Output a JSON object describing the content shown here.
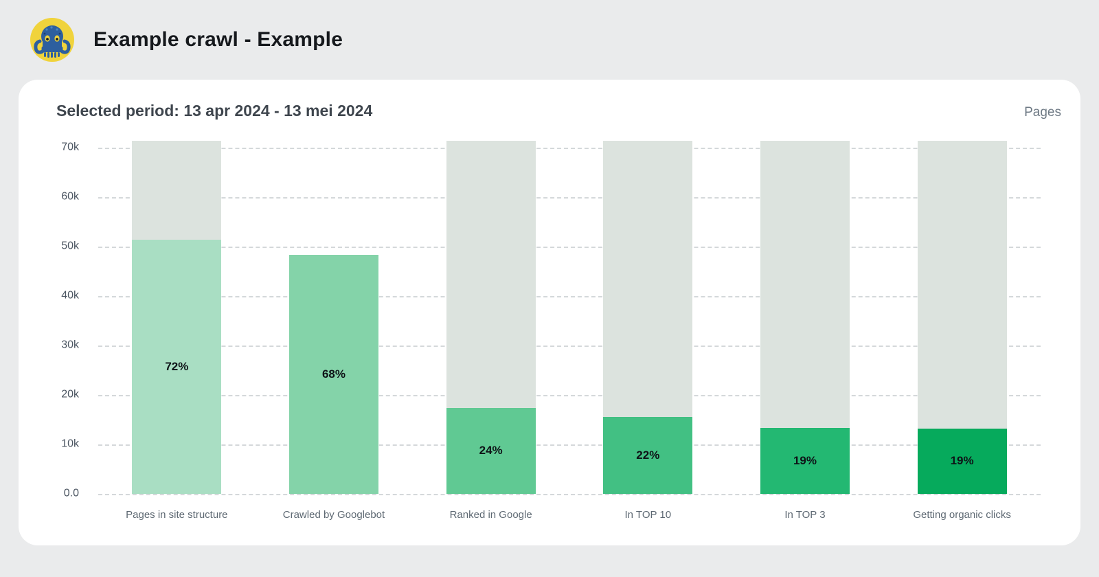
{
  "header": {
    "title": "Example crawl - Example",
    "logo_icon": "octopus-logo"
  },
  "card": {
    "period_label": "Selected period: 13 apr 2024 - 13 mei 2024",
    "unit_label": "Pages"
  },
  "chart_data": {
    "type": "bar",
    "subtype": "seo-funnel-columns",
    "title": "Selected period: 13 apr 2024 - 13 mei 2024",
    "unit": "Pages",
    "categories": [
      "Pages in site structure",
      "Crawled by Googlebot",
      "Ranked in Google",
      "In TOP 10",
      "In TOP 3",
      "Getting organic clicks"
    ],
    "values": [
      51400,
      48300,
      17400,
      15500,
      13400,
      13200
    ],
    "percent_labels": [
      "72%",
      "68%",
      "24%",
      "22%",
      "19%",
      "19%"
    ],
    "total_pages": 71400,
    "has_track": [
      true,
      false,
      true,
      true,
      true,
      true
    ],
    "ylim": [
      0,
      71400
    ],
    "yticks": [
      {
        "label": "70k",
        "value": 70000
      },
      {
        "label": "60k",
        "value": 60000
      },
      {
        "label": "50k",
        "value": 50000
      },
      {
        "label": "40k",
        "value": 40000
      },
      {
        "label": "30k",
        "value": 30000
      },
      {
        "label": "20k",
        "value": 20000
      },
      {
        "label": "10k",
        "value": 10000
      },
      {
        "label": "0.0",
        "value": 0
      }
    ],
    "grid": "horizontal-dashed",
    "legend": "none",
    "bar_colors": [
      "#a9dec3",
      "#84d3a9",
      "#60c993",
      "#42c083",
      "#23b872",
      "#06aa5c"
    ],
    "track_color": "#dce3de",
    "grid_color": "#d4d8da",
    "percent_text_color": "#0e1317"
  }
}
